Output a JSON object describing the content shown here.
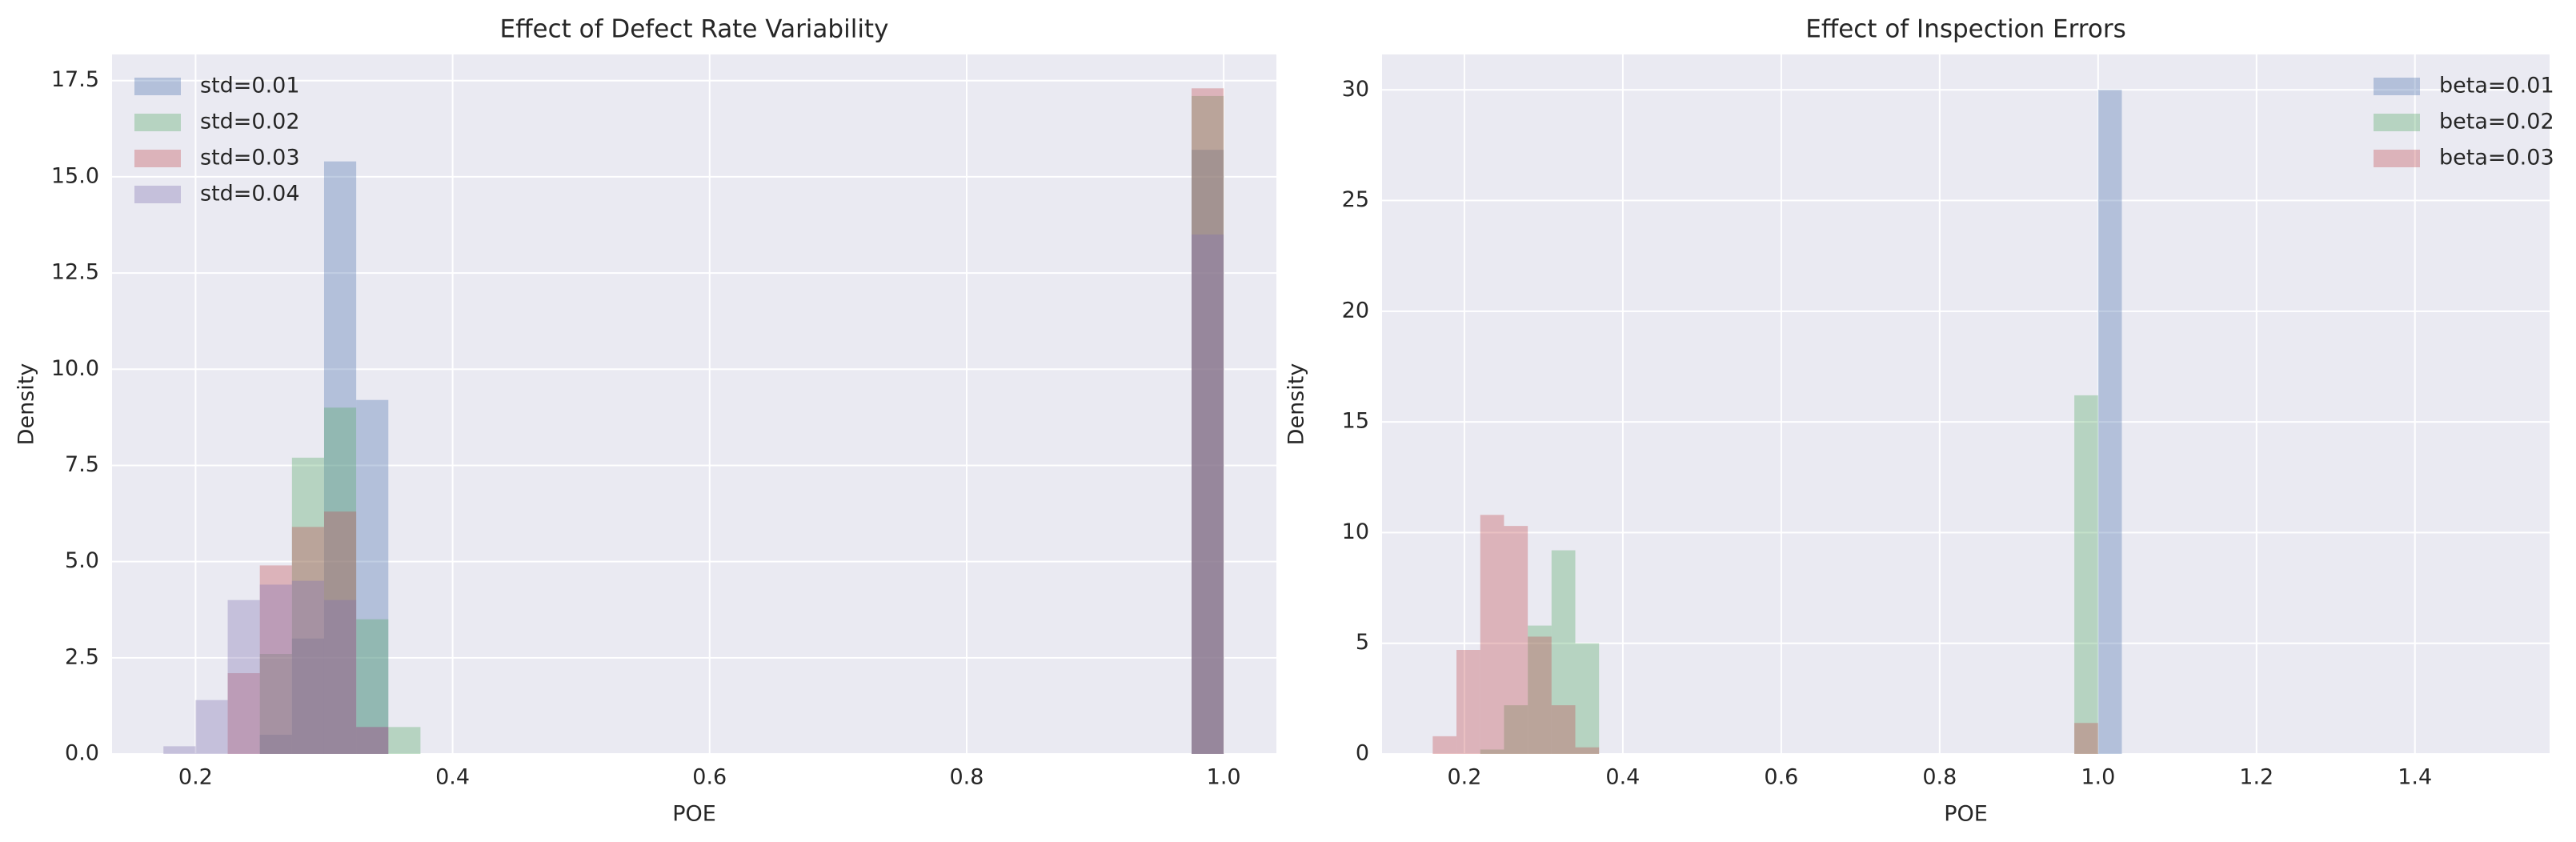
{
  "chart_data": [
    {
      "type": "histogram",
      "title": "Effect of Defect Rate Variability",
      "xlabel": "POE",
      "ylabel": "Density",
      "legend": "upper left",
      "grid": true,
      "xlim": [
        0.135,
        1.041
      ],
      "ylim": [
        0,
        18.18
      ],
      "xticks": [
        0.2,
        0.4,
        0.6,
        0.8,
        {
          "value": 1,
          "label": "1.0"
        }
      ],
      "yticks": [
        {
          "value": 0,
          "label": "0.0"
        },
        2.5,
        {
          "value": 5,
          "label": "5.0"
        },
        7.5,
        {
          "value": 10,
          "label": "10.0"
        },
        12.5,
        {
          "value": 15,
          "label": "15.0"
        },
        17.5
      ],
      "bins": [
        0.175,
        0.2,
        0.225,
        0.25,
        0.275,
        0.3,
        0.325,
        0.35,
        0.375,
        0.4,
        0.425,
        0.45,
        0.475,
        0.5,
        0.525,
        0.55,
        0.575,
        0.6,
        0.625,
        0.65,
        0.675,
        0.7,
        0.725,
        0.75,
        0.775,
        0.8,
        0.825,
        0.85,
        0.875,
        0.9,
        0.925,
        0.95,
        0.975,
        1.0
      ],
      "series": [
        {
          "name": "std=0.01",
          "color": "#4c72b0",
          "values": [
            0,
            0,
            0,
            0.5,
            3.0,
            15.4,
            9.2,
            0,
            0,
            0,
            0,
            0,
            0,
            0,
            0,
            0,
            0,
            0,
            0,
            0,
            0,
            0,
            0,
            0,
            0,
            0,
            0,
            0,
            0,
            0,
            0,
            0,
            15.7
          ]
        },
        {
          "name": "std=0.02",
          "color": "#55a868",
          "values": [
            0,
            0,
            0,
            2.6,
            7.7,
            9.0,
            3.5,
            0.7,
            0,
            0,
            0,
            0,
            0,
            0,
            0,
            0,
            0,
            0,
            0,
            0,
            0,
            0,
            0,
            0,
            0,
            0,
            0,
            0,
            0,
            0,
            0,
            0,
            17.1
          ]
        },
        {
          "name": "std=0.03",
          "color": "#c44e52",
          "values": [
            0,
            0,
            2.1,
            4.9,
            5.9,
            6.3,
            0.7,
            0,
            0,
            0,
            0,
            0,
            0,
            0,
            0,
            0,
            0,
            0,
            0,
            0,
            0,
            0,
            0,
            0,
            0,
            0,
            0,
            0,
            0,
            0,
            0,
            0,
            17.3
          ]
        },
        {
          "name": "std=0.04",
          "color": "#8172b2",
          "values": [
            0.2,
            1.4,
            4.0,
            4.4,
            4.5,
            4.0,
            0.7,
            0,
            0,
            0,
            0,
            0,
            0,
            0,
            0,
            0,
            0,
            0,
            0,
            0,
            0,
            0,
            0,
            0,
            0,
            0,
            0,
            0,
            0,
            0,
            0,
            0,
            13.5
          ]
        }
      ]
    },
    {
      "type": "histogram",
      "title": "Effect of Inspection Errors",
      "xlabel": "POE",
      "ylabel": "Density",
      "legend": "upper right",
      "grid": true,
      "xlim": [
        0.096,
        1.57
      ],
      "ylim": [
        0,
        31.6
      ],
      "xticks": [
        0.2,
        0.4,
        0.6,
        0.8,
        {
          "value": 1,
          "label": "1.0"
        },
        1.2,
        1.4
      ],
      "yticks": [
        0,
        5,
        10,
        15,
        20,
        25,
        30
      ],
      "bins": [
        0.16,
        0.19,
        0.22,
        0.25,
        0.28,
        0.31,
        0.34,
        0.37,
        0.4,
        0.43,
        0.46,
        0.49,
        0.52,
        0.55,
        0.58,
        0.61,
        0.64,
        0.67,
        0.7,
        0.73,
        0.76,
        0.79,
        0.82,
        0.85,
        0.88,
        0.91,
        0.94,
        0.97,
        1.0,
        1.03
      ],
      "series": [
        {
          "name": "beta=0.01",
          "color": "#4c72b0",
          "values": [
            0,
            0,
            0,
            0,
            0,
            0,
            0,
            0,
            0,
            0,
            0,
            0,
            0,
            0,
            0,
            0,
            0,
            0,
            0,
            0,
            0,
            0,
            0,
            0,
            0,
            0,
            0,
            0,
            30
          ]
        },
        {
          "name": "beta=0.02",
          "color": "#55a868",
          "values": [
            0,
            0,
            0.2,
            2.2,
            5.8,
            9.2,
            5.0,
            0,
            0,
            0,
            0,
            0,
            0,
            0,
            0,
            0,
            0,
            0,
            0,
            0,
            0,
            0,
            0,
            0,
            0,
            0,
            0,
            16.2,
            0
          ]
        },
        {
          "name": "beta=0.03",
          "color": "#c44e52",
          "values": [
            0.8,
            4.7,
            10.8,
            10.3,
            5.3,
            2.2,
            0.3,
            0,
            0,
            0,
            0,
            0,
            0,
            0,
            0,
            0,
            0,
            0,
            0,
            0,
            0,
            0,
            0,
            0,
            0,
            0,
            0,
            1.4,
            0
          ]
        }
      ]
    }
  ]
}
